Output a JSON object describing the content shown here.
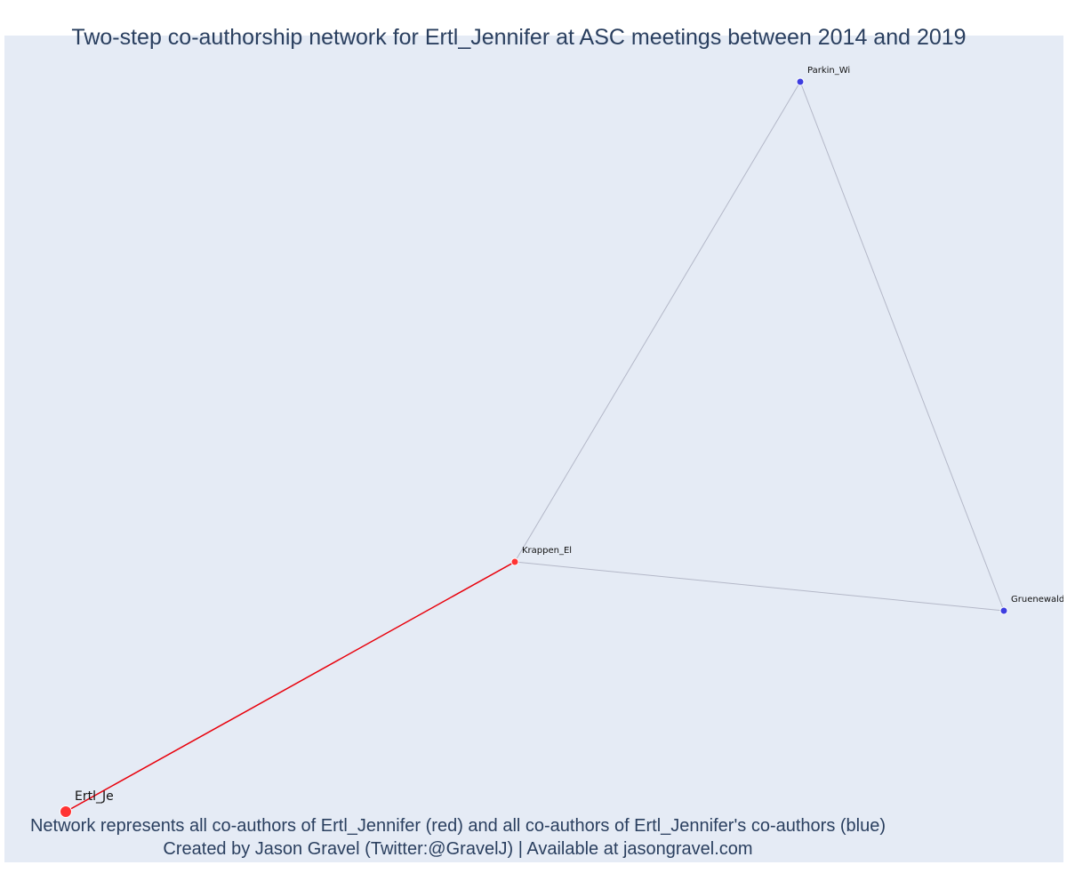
{
  "title": "Two-step co-authorship network for Ertl_Jennifer at ASC meetings between 2014 and 2019",
  "captions": [
    "Network represents all co-authors of Ertl_Jennifer (red) and all co-authors of Ertl_Jennifer's co-authors (blue)",
    "Created by Jason Gravel (Twitter:@GravelJ) | Available at jasongravel.com"
  ],
  "colors": {
    "background": "#e5ebf5",
    "primary_node": "#ff3333",
    "secondary_node": "#3d3de0",
    "primary_edge": "#e8000b",
    "secondary_edge": "#b4b8c8",
    "text": "#2a3f5f"
  },
  "nodes": [
    {
      "id": "ertl",
      "label": "Ertl_Je",
      "group": "focal"
    },
    {
      "id": "krappen",
      "label": "Krappen_El",
      "group": "co-author"
    },
    {
      "id": "parkin",
      "label": "Parkin_Wi",
      "group": "second-step"
    },
    {
      "id": "gruenewald",
      "label": "Gruenewald_",
      "group": "second-step"
    }
  ],
  "edges": [
    {
      "source": "ertl",
      "target": "krappen",
      "type": "first-step"
    },
    {
      "source": "krappen",
      "target": "parkin",
      "type": "second-step"
    },
    {
      "source": "krappen",
      "target": "gruenewald",
      "type": "second-step"
    },
    {
      "source": "parkin",
      "target": "gruenewald",
      "type": "second-step"
    }
  ]
}
